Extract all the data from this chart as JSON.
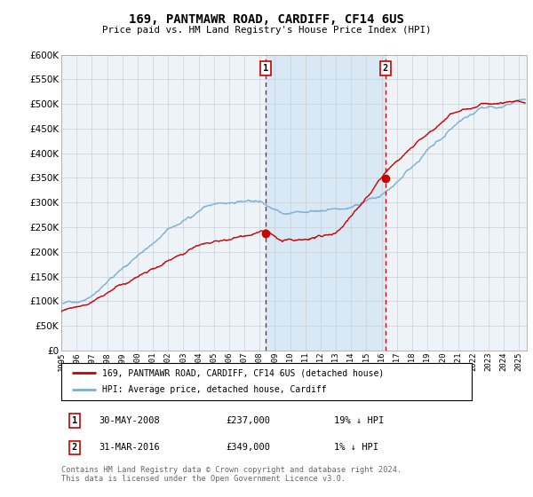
{
  "title": "169, PANTMAWR ROAD, CARDIFF, CF14 6US",
  "subtitle": "Price paid vs. HM Land Registry's House Price Index (HPI)",
  "legend_line1": "169, PANTMAWR ROAD, CARDIFF, CF14 6US (detached house)",
  "legend_line2": "HPI: Average price, detached house, Cardiff",
  "annotation1_date": "30-MAY-2008",
  "annotation1_price": "£237,000",
  "annotation1_hpi": "19% ↓ HPI",
  "annotation1_year": 2008.41,
  "annotation1_value": 237000,
  "annotation2_date": "31-MAR-2016",
  "annotation2_price": "£349,000",
  "annotation2_hpi": "1% ↓ HPI",
  "annotation2_year": 2016.25,
  "annotation2_value": 349000,
  "hpi_color": "#7bafd4",
  "price_color": "#cc0000",
  "background_color": "#ffffff",
  "plot_bg_color": "#eef3f8",
  "shade_color": "#d8e8f4",
  "grid_color": "#c8d0d8",
  "ylim": [
    0,
    600000
  ],
  "xlim_start": 1995.0,
  "xlim_end": 2025.5,
  "footer": "Contains HM Land Registry data © Crown copyright and database right 2024.\nThis data is licensed under the Open Government Licence v3.0."
}
